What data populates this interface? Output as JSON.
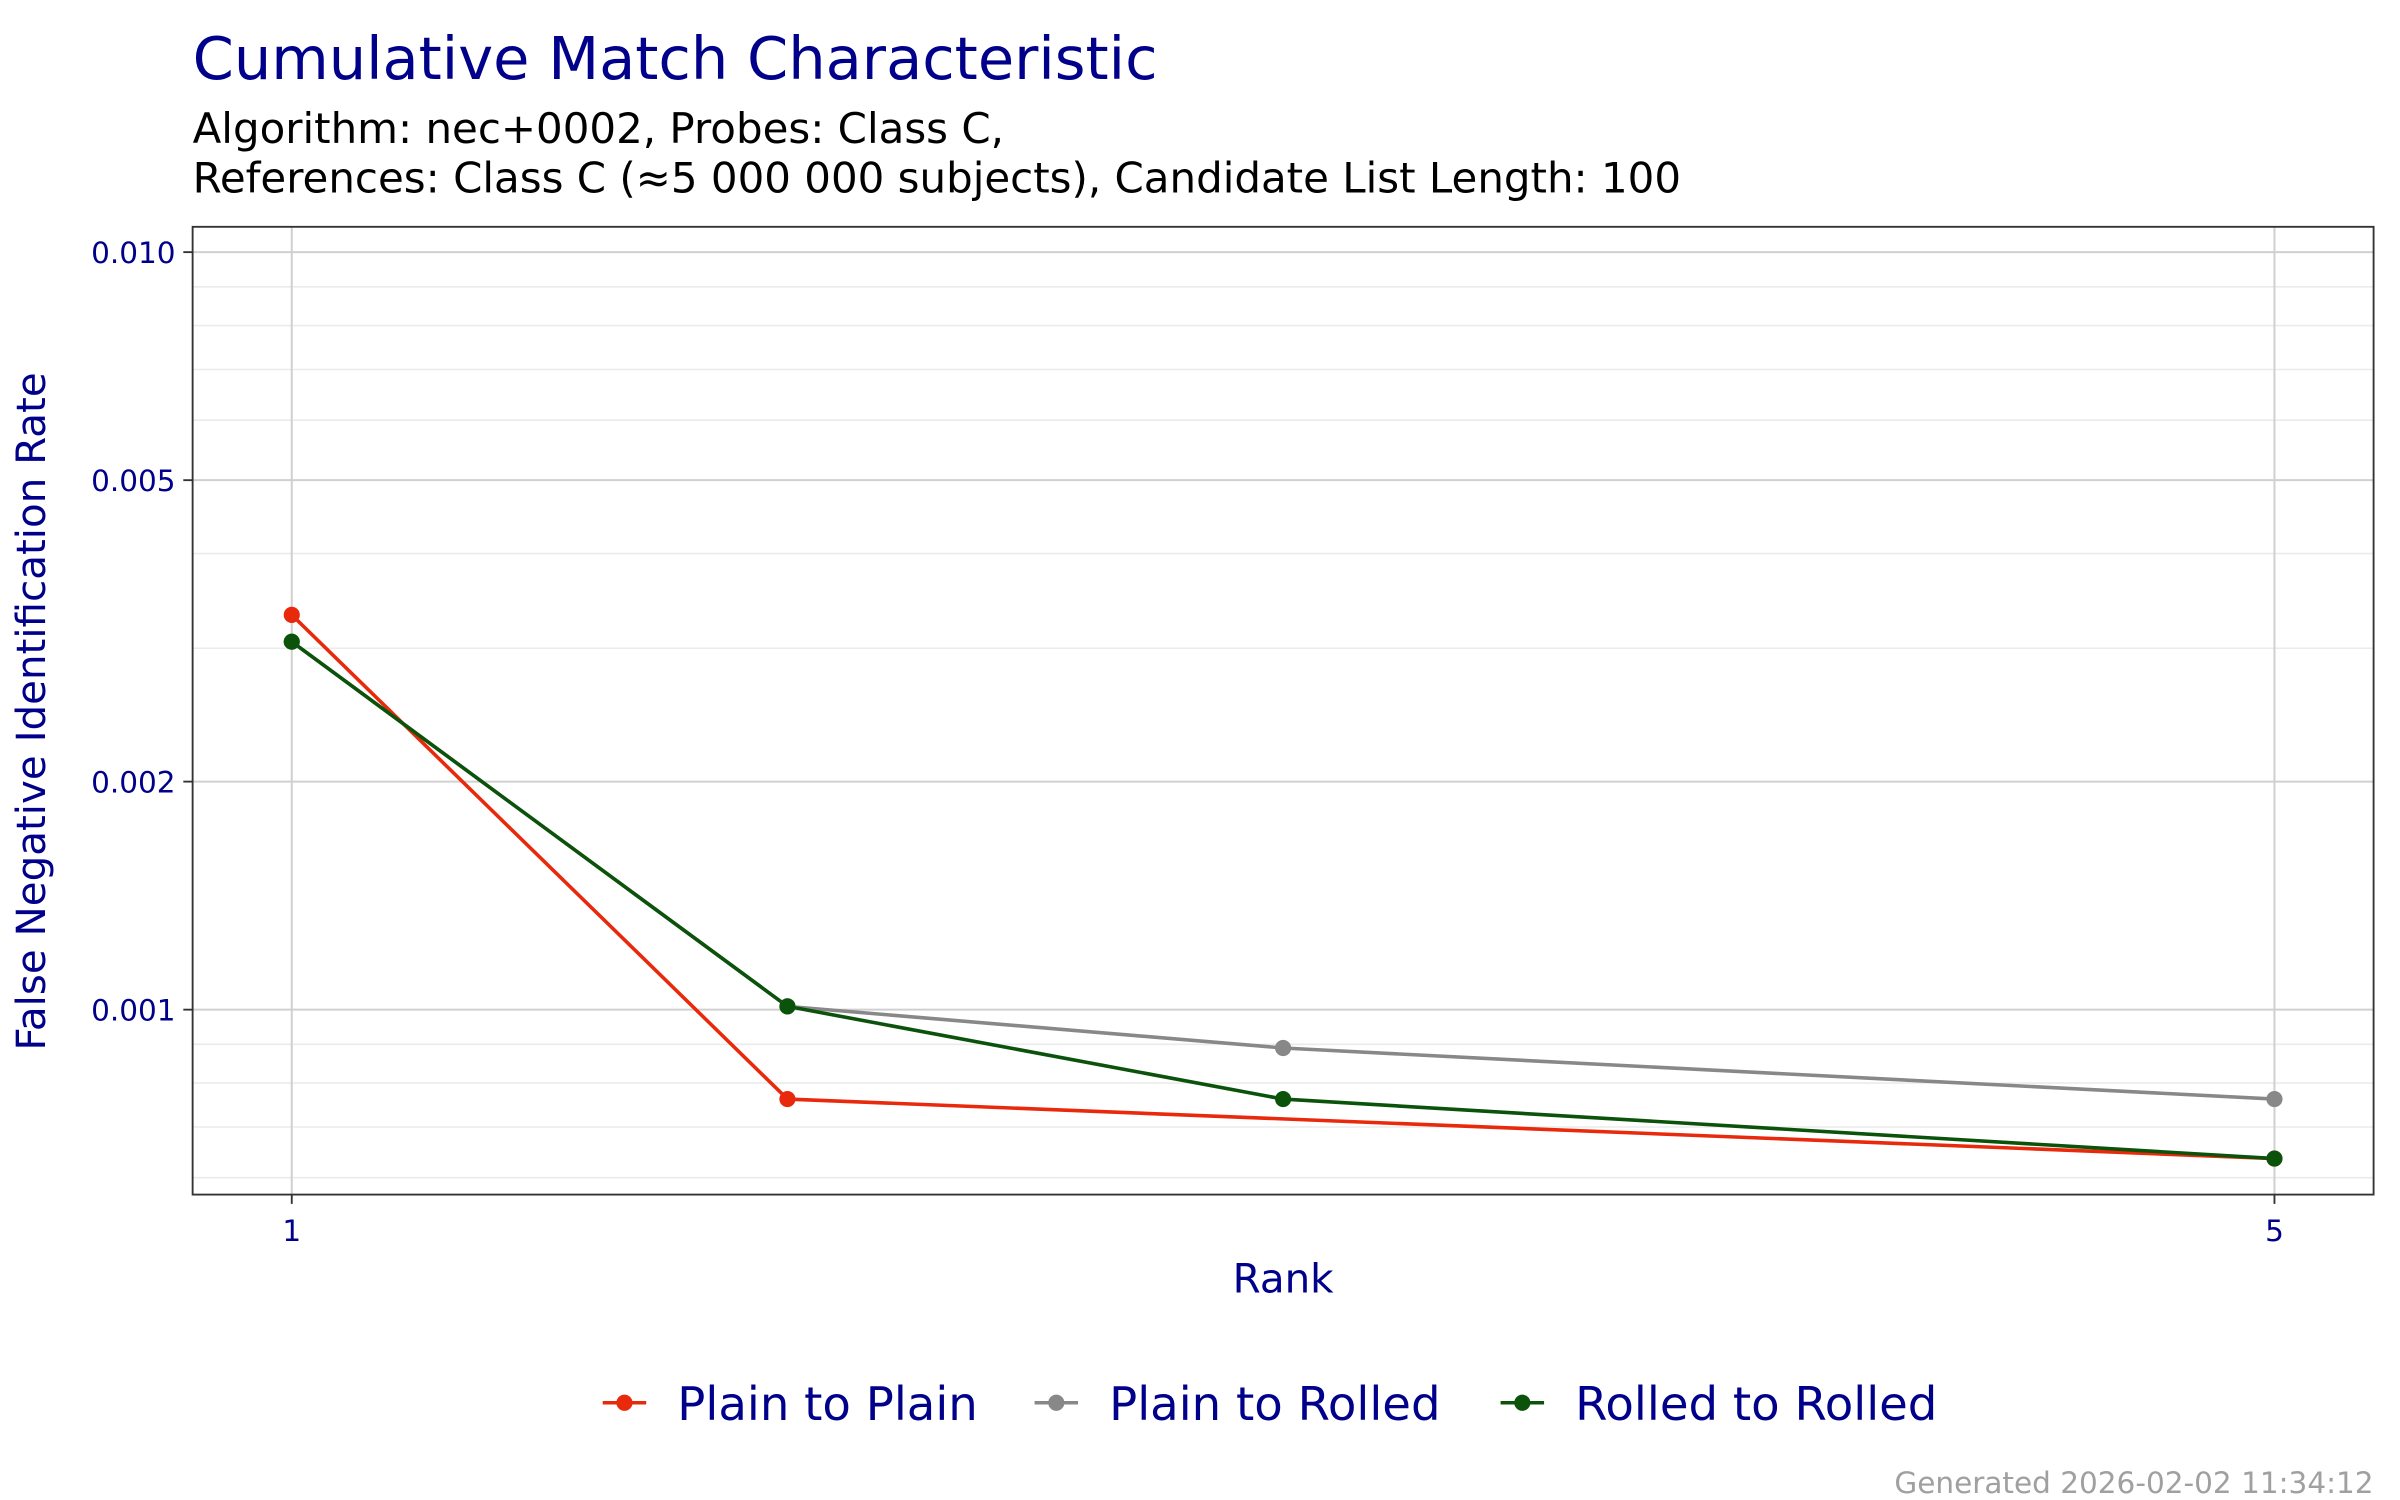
{
  "chart_data": {
    "type": "line",
    "title": "Cumulative Match Characteristic",
    "subtitle_lines": [
      "Algorithm: nec+0002, Probes: Class C,",
      "References: Class C (≈5 000 000 subjects), Candidate List Length: 100"
    ],
    "xlabel": "Rank",
    "ylabel": "False Negative Identification Rate",
    "x_scale": "linear",
    "y_scale": "log10",
    "xlim": [
      0.8,
      5.2
    ],
    "ylim": [
      0.00057,
      0.0108
    ],
    "x_ticks": [
      1,
      5
    ],
    "x_tick_labels": [
      "1",
      "5"
    ],
    "y_ticks": [
      0.001,
      0.002,
      0.005,
      0.01
    ],
    "y_tick_labels": [
      "0.001",
      "0.002",
      "0.005",
      "0.010"
    ],
    "y_minor_ticks": [
      0.0006,
      0.0007,
      0.0008,
      0.0009,
      0.003,
      0.004,
      0.006,
      0.007,
      0.008,
      0.009
    ],
    "grid": true,
    "legend_position": "bottom",
    "series": [
      {
        "name": "Plain to Plain",
        "color": "#e8290b",
        "x": [
          1,
          2,
          5
        ],
        "y": [
          0.00332,
          0.000762,
          0.000636
        ]
      },
      {
        "name": "Plain to Rolled",
        "color": "#888888",
        "x": [
          1,
          2,
          3,
          5
        ],
        "y": [
          0.00306,
          0.00101,
          0.00089,
          0.000762
        ]
      },
      {
        "name": "Rolled to Rolled",
        "color": "#0b520b",
        "x": [
          1,
          2,
          3,
          5
        ],
        "y": [
          0.00306,
          0.00101,
          0.000762,
          0.000636
        ]
      }
    ],
    "footer": "Generated 2026-02-02 11:34:12"
  },
  "colors": {
    "title": "#00008b",
    "axis_text": "#00008b",
    "footer": "#a0a0a0"
  }
}
